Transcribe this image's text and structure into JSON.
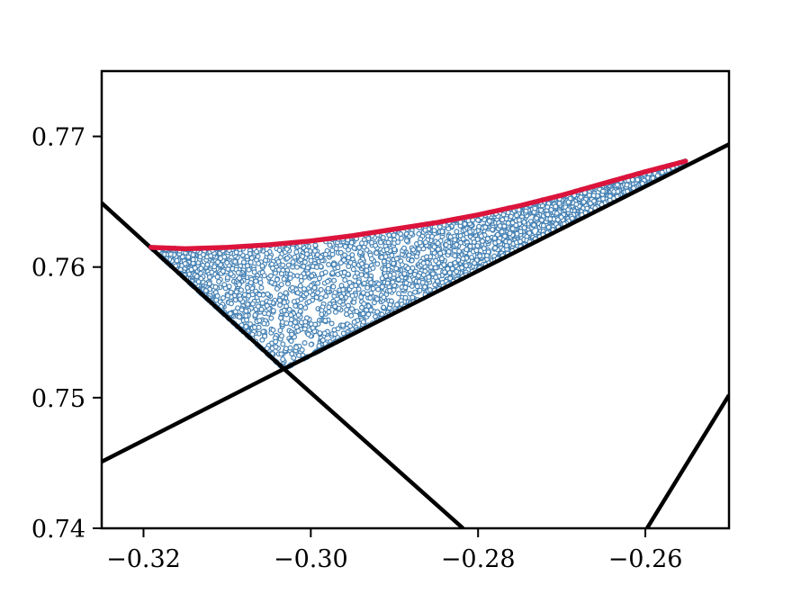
{
  "chart_data": {
    "type": "scatter",
    "title": "",
    "xlabel": "",
    "ylabel": "",
    "xlim": [
      -0.325,
      -0.25
    ],
    "ylim": [
      0.74,
      0.775
    ],
    "x_ticks": [
      -0.32,
      -0.3,
      -0.28,
      -0.26
    ],
    "x_tick_labels": [
      "−0.32",
      "−0.30",
      "−0.28",
      "−0.26"
    ],
    "y_ticks": [
      0.74,
      0.75,
      0.76,
      0.77
    ],
    "y_tick_labels": [
      "0.74",
      "0.75",
      "0.76",
      "0.77"
    ],
    "grid": false,
    "legend": "none",
    "lines": [
      {
        "color": "#000000",
        "points": [
          [
            -0.325,
            0.7649
          ],
          [
            -0.3032,
            0.7522
          ],
          [
            -0.2818,
            0.74
          ]
        ]
      },
      {
        "color": "#000000",
        "points": [
          [
            -0.325,
            0.7451
          ],
          [
            -0.3032,
            0.7522
          ],
          [
            -0.25,
            0.7694
          ]
        ]
      },
      {
        "color": "#000000",
        "points": [
          [
            -0.2598,
            0.74
          ],
          [
            -0.25,
            0.7502
          ]
        ]
      }
    ],
    "upper_boundary": {
      "color": "#dc143c",
      "points": [
        [
          -0.3191,
          0.7615
        ],
        [
          -0.315,
          0.7614
        ],
        [
          -0.31,
          0.7615
        ],
        [
          -0.305,
          0.7617
        ],
        [
          -0.3,
          0.762
        ],
        [
          -0.295,
          0.7624
        ],
        [
          -0.29,
          0.7629
        ],
        [
          -0.285,
          0.7634
        ],
        [
          -0.28,
          0.764
        ],
        [
          -0.275,
          0.7647
        ],
        [
          -0.27,
          0.7655
        ],
        [
          -0.265,
          0.7664
        ],
        [
          -0.26,
          0.7673
        ],
        [
          -0.2552,
          0.7681
        ]
      ]
    },
    "feasible_region": {
      "color": "#4682b4",
      "vertices": [
        [
          -0.3191,
          0.7615
        ],
        [
          -0.3032,
          0.7522
        ],
        [
          -0.2552,
          0.7681
        ]
      ]
    }
  }
}
